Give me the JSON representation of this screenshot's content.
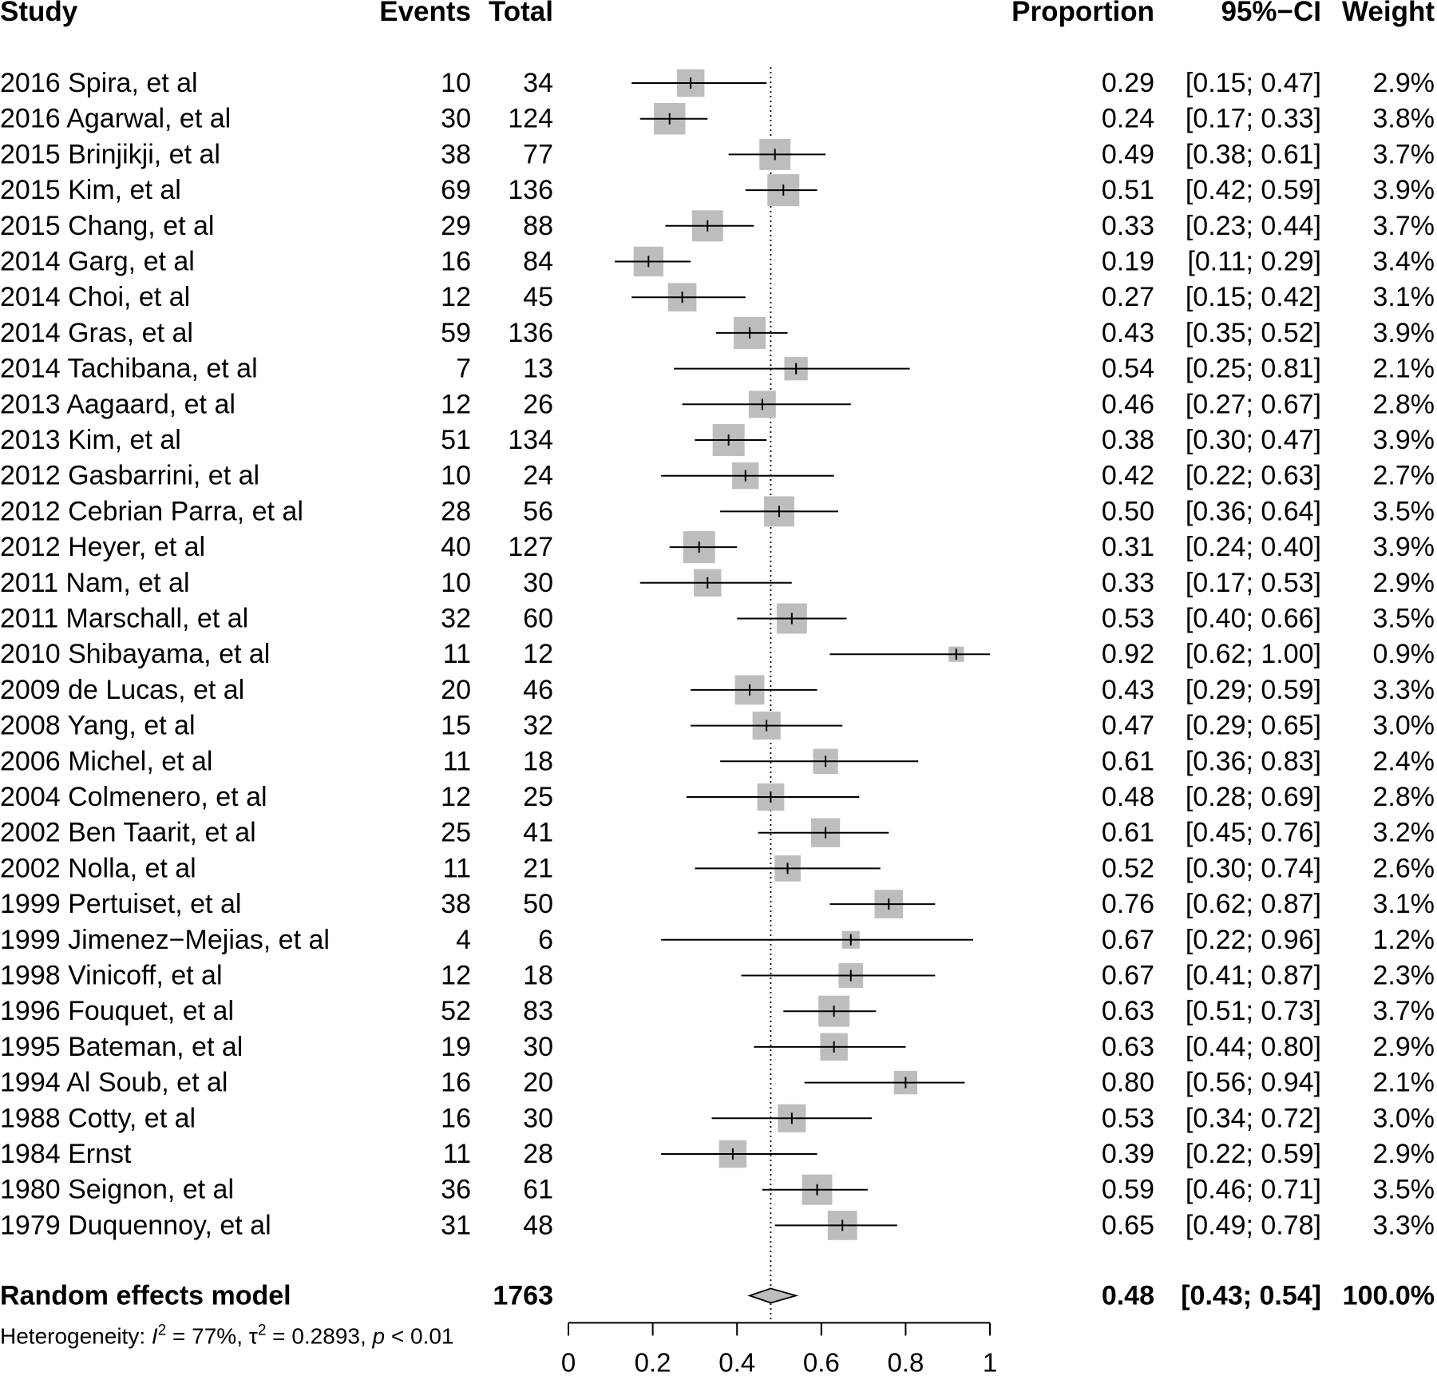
{
  "headers": {
    "study": "Study",
    "events": "Events",
    "total": "Total",
    "proportion": "Proportion",
    "ci": "95%−CI",
    "weight": "Weight"
  },
  "chart_data": {
    "type": "forest",
    "studies": [
      {
        "study": "2016 Spira, et al",
        "events": 10,
        "total": 34,
        "proportion": "0.29",
        "ci": "[0.15; 0.47]",
        "weight": "2.9%",
        "est": 0.29,
        "lo": 0.15,
        "hi": 0.47,
        "w": 2.9
      },
      {
        "study": "2016 Agarwal, et al",
        "events": 30,
        "total": 124,
        "proportion": "0.24",
        "ci": "[0.17; 0.33]",
        "weight": "3.8%",
        "est": 0.24,
        "lo": 0.17,
        "hi": 0.33,
        "w": 3.8
      },
      {
        "study": "2015 Brinjikji, et al",
        "events": 38,
        "total": 77,
        "proportion": "0.49",
        "ci": "[0.38; 0.61]",
        "weight": "3.7%",
        "est": 0.49,
        "lo": 0.38,
        "hi": 0.61,
        "w": 3.7
      },
      {
        "study": "2015 Kim, et al",
        "events": 69,
        "total": 136,
        "proportion": "0.51",
        "ci": "[0.42; 0.59]",
        "weight": "3.9%",
        "est": 0.51,
        "lo": 0.42,
        "hi": 0.59,
        "w": 3.9
      },
      {
        "study": "2015 Chang, et al",
        "events": 29,
        "total": 88,
        "proportion": "0.33",
        "ci": "[0.23; 0.44]",
        "weight": "3.7%",
        "est": 0.33,
        "lo": 0.23,
        "hi": 0.44,
        "w": 3.7
      },
      {
        "study": "2014 Garg, et al",
        "events": 16,
        "total": 84,
        "proportion": "0.19",
        "ci": "[0.11; 0.29]",
        "weight": "3.4%",
        "est": 0.19,
        "lo": 0.11,
        "hi": 0.29,
        "w": 3.4
      },
      {
        "study": "2014 Choi, et al",
        "events": 12,
        "total": 45,
        "proportion": "0.27",
        "ci": "[0.15; 0.42]",
        "weight": "3.1%",
        "est": 0.27,
        "lo": 0.15,
        "hi": 0.42,
        "w": 3.1
      },
      {
        "study": "2014 Gras, et al",
        "events": 59,
        "total": 136,
        "proportion": "0.43",
        "ci": "[0.35; 0.52]",
        "weight": "3.9%",
        "est": 0.43,
        "lo": 0.35,
        "hi": 0.52,
        "w": 3.9
      },
      {
        "study": "2014 Tachibana, et al",
        "events": 7,
        "total": 13,
        "proportion": "0.54",
        "ci": "[0.25; 0.81]",
        "weight": "2.1%",
        "est": 0.54,
        "lo": 0.25,
        "hi": 0.81,
        "w": 2.1
      },
      {
        "study": "2013 Aagaard, et al",
        "events": 12,
        "total": 26,
        "proportion": "0.46",
        "ci": "[0.27; 0.67]",
        "weight": "2.8%",
        "est": 0.46,
        "lo": 0.27,
        "hi": 0.67,
        "w": 2.8
      },
      {
        "study": "2013 Kim, et al",
        "events": 51,
        "total": 134,
        "proportion": "0.38",
        "ci": "[0.30; 0.47]",
        "weight": "3.9%",
        "est": 0.38,
        "lo": 0.3,
        "hi": 0.47,
        "w": 3.9
      },
      {
        "study": "2012 Gasbarrini, et al",
        "events": 10,
        "total": 24,
        "proportion": "0.42",
        "ci": "[0.22; 0.63]",
        "weight": "2.7%",
        "est": 0.42,
        "lo": 0.22,
        "hi": 0.63,
        "w": 2.7
      },
      {
        "study": "2012 Cebrian Parra, et al",
        "events": 28,
        "total": 56,
        "proportion": "0.50",
        "ci": "[0.36; 0.64]",
        "weight": "3.5%",
        "est": 0.5,
        "lo": 0.36,
        "hi": 0.64,
        "w": 3.5
      },
      {
        "study": "2012 Heyer, et al",
        "events": 40,
        "total": 127,
        "proportion": "0.31",
        "ci": "[0.24; 0.40]",
        "weight": "3.9%",
        "est": 0.31,
        "lo": 0.24,
        "hi": 0.4,
        "w": 3.9
      },
      {
        "study": "2011 Nam, et al",
        "events": 10,
        "total": 30,
        "proportion": "0.33",
        "ci": "[0.17; 0.53]",
        "weight": "2.9%",
        "est": 0.33,
        "lo": 0.17,
        "hi": 0.53,
        "w": 2.9
      },
      {
        "study": "2011 Marschall, et al",
        "events": 32,
        "total": 60,
        "proportion": "0.53",
        "ci": "[0.40; 0.66]",
        "weight": "3.5%",
        "est": 0.53,
        "lo": 0.4,
        "hi": 0.66,
        "w": 3.5
      },
      {
        "study": "2010 Shibayama, et al",
        "events": 11,
        "total": 12,
        "proportion": "0.92",
        "ci": "[0.62; 1.00]",
        "weight": "0.9%",
        "est": 0.92,
        "lo": 0.62,
        "hi": 1.0,
        "w": 0.9
      },
      {
        "study": "2009 de Lucas, et al",
        "events": 20,
        "total": 46,
        "proportion": "0.43",
        "ci": "[0.29; 0.59]",
        "weight": "3.3%",
        "est": 0.43,
        "lo": 0.29,
        "hi": 0.59,
        "w": 3.3
      },
      {
        "study": "2008 Yang, et al",
        "events": 15,
        "total": 32,
        "proportion": "0.47",
        "ci": "[0.29; 0.65]",
        "weight": "3.0%",
        "est": 0.47,
        "lo": 0.29,
        "hi": 0.65,
        "w": 3.0
      },
      {
        "study": "2006 Michel, et al",
        "events": 11,
        "total": 18,
        "proportion": "0.61",
        "ci": "[0.36; 0.83]",
        "weight": "2.4%",
        "est": 0.61,
        "lo": 0.36,
        "hi": 0.83,
        "w": 2.4
      },
      {
        "study": "2004 Colmenero, et al",
        "events": 12,
        "total": 25,
        "proportion": "0.48",
        "ci": "[0.28; 0.69]",
        "weight": "2.8%",
        "est": 0.48,
        "lo": 0.28,
        "hi": 0.69,
        "w": 2.8
      },
      {
        "study": "2002 Ben Taarit, et al",
        "events": 25,
        "total": 41,
        "proportion": "0.61",
        "ci": "[0.45; 0.76]",
        "weight": "3.2%",
        "est": 0.61,
        "lo": 0.45,
        "hi": 0.76,
        "w": 3.2
      },
      {
        "study": "2002 Nolla, et al",
        "events": 11,
        "total": 21,
        "proportion": "0.52",
        "ci": "[0.30; 0.74]",
        "weight": "2.6%",
        "est": 0.52,
        "lo": 0.3,
        "hi": 0.74,
        "w": 2.6
      },
      {
        "study": "1999 Pertuiset, et al",
        "events": 38,
        "total": 50,
        "proportion": "0.76",
        "ci": "[0.62; 0.87]",
        "weight": "3.1%",
        "est": 0.76,
        "lo": 0.62,
        "hi": 0.87,
        "w": 3.1
      },
      {
        "study": "1999 Jimenez−Mejias, et al",
        "events": 4,
        "total": 6,
        "proportion": "0.67",
        "ci": "[0.22; 0.96]",
        "weight": "1.2%",
        "est": 0.67,
        "lo": 0.22,
        "hi": 0.96,
        "w": 1.2
      },
      {
        "study": "1998 Vinicoff, et al",
        "events": 12,
        "total": 18,
        "proportion": "0.67",
        "ci": "[0.41; 0.87]",
        "weight": "2.3%",
        "est": 0.67,
        "lo": 0.41,
        "hi": 0.87,
        "w": 2.3
      },
      {
        "study": "1996 Fouquet, et al",
        "events": 52,
        "total": 83,
        "proportion": "0.63",
        "ci": "[0.51; 0.73]",
        "weight": "3.7%",
        "est": 0.63,
        "lo": 0.51,
        "hi": 0.73,
        "w": 3.7
      },
      {
        "study": "1995 Bateman, et al",
        "events": 19,
        "total": 30,
        "proportion": "0.63",
        "ci": "[0.44; 0.80]",
        "weight": "2.9%",
        "est": 0.63,
        "lo": 0.44,
        "hi": 0.8,
        "w": 2.9
      },
      {
        "study": "1994 Al Soub, et al",
        "events": 16,
        "total": 20,
        "proportion": "0.80",
        "ci": "[0.56; 0.94]",
        "weight": "2.1%",
        "est": 0.8,
        "lo": 0.56,
        "hi": 0.94,
        "w": 2.1
      },
      {
        "study": "1988 Cotty, et al",
        "events": 16,
        "total": 30,
        "proportion": "0.53",
        "ci": "[0.34; 0.72]",
        "weight": "3.0%",
        "est": 0.53,
        "lo": 0.34,
        "hi": 0.72,
        "w": 3.0
      },
      {
        "study": "1984 Ernst",
        "events": 11,
        "total": 28,
        "proportion": "0.39",
        "ci": "[0.22; 0.59]",
        "weight": "2.9%",
        "est": 0.39,
        "lo": 0.22,
        "hi": 0.59,
        "w": 2.9
      },
      {
        "study": "1980 Seignon, et al",
        "events": 36,
        "total": 61,
        "proportion": "0.59",
        "ci": "[0.46; 0.71]",
        "weight": "3.5%",
        "est": 0.59,
        "lo": 0.46,
        "hi": 0.71,
        "w": 3.5
      },
      {
        "study": "1979 Duquennoy, et al",
        "events": 31,
        "total": 48,
        "proportion": "0.65",
        "ci": "[0.49; 0.78]",
        "weight": "3.3%",
        "est": 0.65,
        "lo": 0.49,
        "hi": 0.78,
        "w": 3.3
      }
    ],
    "summary": {
      "label": "Random effects model",
      "total": "1763",
      "proportion": "0.48",
      "ci": "[0.43; 0.54]",
      "weight": "100.0%",
      "est": 0.48,
      "lo": 0.43,
      "hi": 0.54
    },
    "heterogeneity": {
      "prefix": "Heterogeneity: ",
      "i2_symbol": "I",
      "i2_sup": "2",
      "i2_value": " = 77%, ",
      "tau_symbol": "τ",
      "tau_sup": "2",
      "tau_value": " = 0.2893, ",
      "p_symbol": "p",
      "p_value": " < 0.01"
    },
    "xlim": [
      0,
      1
    ],
    "x_ticks": [
      0,
      0.2,
      0.4,
      0.6,
      0.8,
      1
    ],
    "x_tick_labels": [
      "0",
      "0.2",
      "0.4",
      "0.6",
      "0.8",
      "1"
    ],
    "reference_line": 0.48,
    "colors": {
      "box": "#bdbdbd",
      "diamond": "#bdbdbd",
      "line": "#000000"
    }
  }
}
